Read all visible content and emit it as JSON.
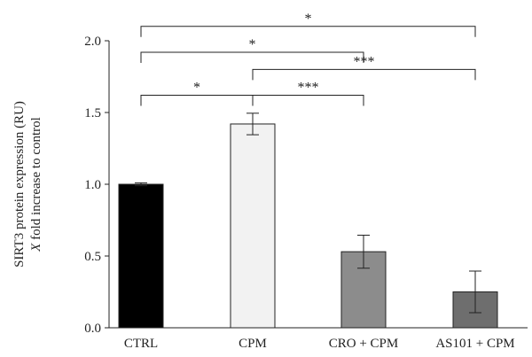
{
  "chart_data": {
    "type": "bar",
    "categories": [
      "CTRL",
      "CPM",
      "CRO + CPM",
      "AS101 + CPM"
    ],
    "values": [
      1.0,
      1.42,
      0.53,
      0.25
    ],
    "errors": [
      0.01,
      0.075,
      0.115,
      0.145
    ],
    "bar_colors": [
      "#000000",
      "#f2f2f2",
      "#8c8c8c",
      "#6e6e6e"
    ],
    "ylabel_line1": "SIRT3 protein expression (RU)",
    "ylabel_line2_italic": "X",
    "ylabel_line2_rest": " fold increase to control",
    "ylim": [
      0,
      2.0
    ],
    "yticks": [
      "0.0",
      "0.5",
      "1.0",
      "1.5",
      "2.0"
    ],
    "ytick_values": [
      0,
      0.5,
      1.0,
      1.5,
      2.0
    ],
    "significance": [
      {
        "from": 0,
        "to": 1,
        "label": "*",
        "level": 1.62
      },
      {
        "from": 1,
        "to": 2,
        "label": "***",
        "level": 1.62
      },
      {
        "from": 1,
        "to": 3,
        "label": "***",
        "level": 1.8
      },
      {
        "from": 0,
        "to": 2,
        "label": "*",
        "level": 1.92
      },
      {
        "from": 0,
        "to": 3,
        "label": "*",
        "level": 2.1
      }
    ]
  }
}
